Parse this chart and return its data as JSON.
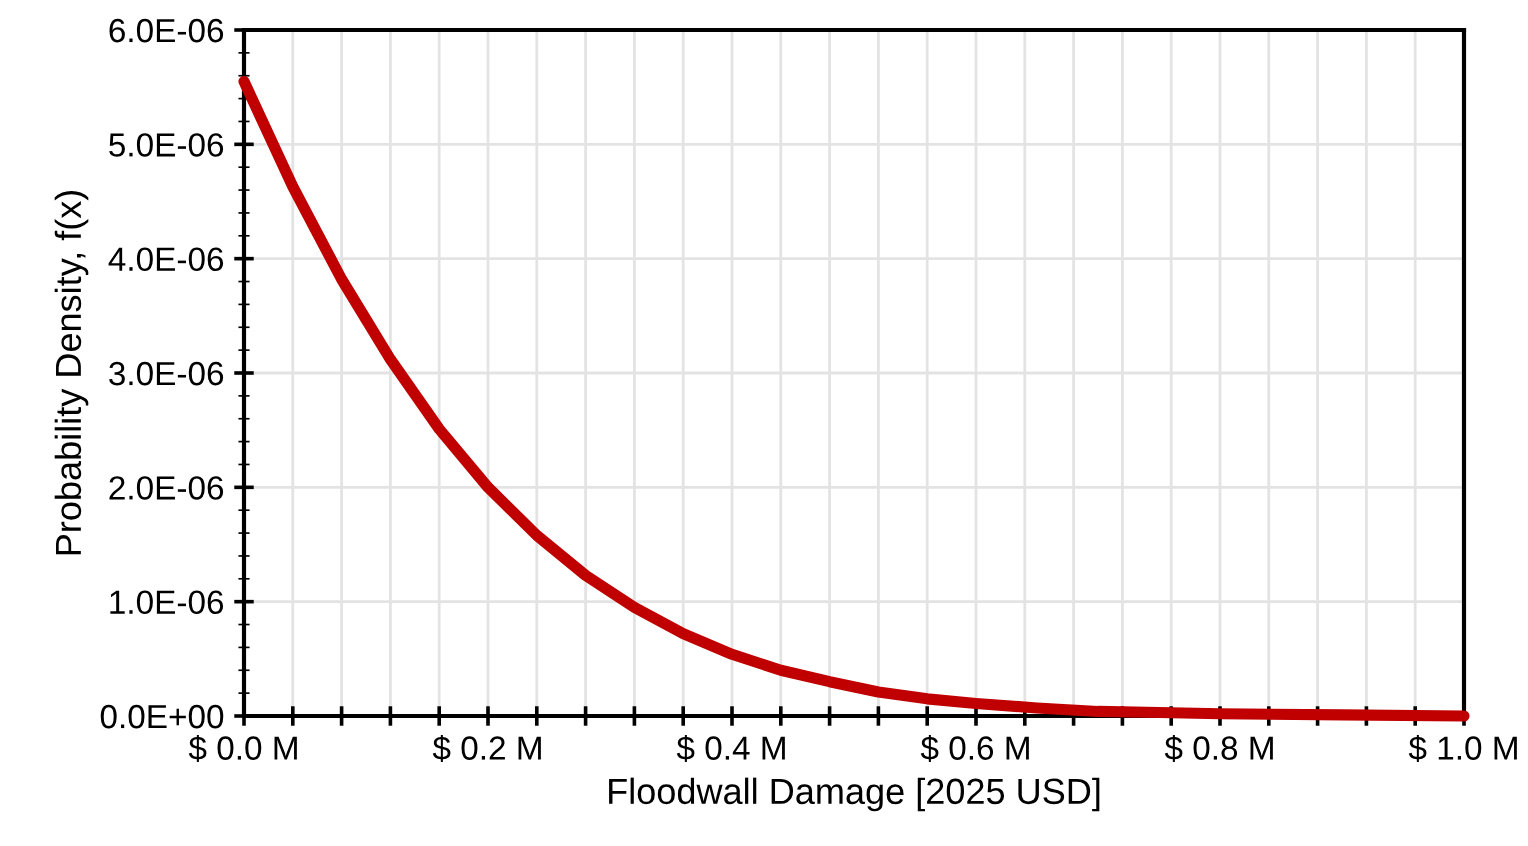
{
  "chart_data": {
    "type": "line",
    "xlabel": "Floodwall Damage [2025 USD]",
    "ylabel": "Probability Density, f(x)",
    "x": [
      0,
      0.04,
      0.08,
      0.12,
      0.16,
      0.2,
      0.24,
      0.28,
      0.32,
      0.36,
      0.4,
      0.44,
      0.48,
      0.52,
      0.56,
      0.6,
      0.65,
      0.7,
      0.75,
      0.8,
      0.9,
      1.0
    ],
    "series": [
      {
        "color": "#c00000",
        "values": [
          5.55e-06,
          4.63e-06,
          3.82e-06,
          3.12e-06,
          2.51e-06,
          2e-06,
          1.58e-06,
          1.23e-06,
          9.5e-07,
          7.2e-07,
          5.4e-07,
          4e-07,
          3e-07,
          2.1e-07,
          1.5e-07,
          1.1e-07,
          7e-08,
          4e-08,
          3e-08,
          2e-08,
          1e-08,
          0
        ]
      }
    ],
    "xlim": [
      0,
      1.0
    ],
    "ylim": [
      0,
      6e-06
    ],
    "xticks": [
      {
        "value": 0,
        "label": "$ 0.0 M"
      },
      {
        "value": 0.04,
        "label": null
      },
      {
        "value": 0.08,
        "label": null
      },
      {
        "value": 0.12,
        "label": null
      },
      {
        "value": 0.16,
        "label": null
      },
      {
        "value": 0.2,
        "label": "$ 0.2 M"
      },
      {
        "value": 0.24,
        "label": null
      },
      {
        "value": 0.28,
        "label": null
      },
      {
        "value": 0.32,
        "label": null
      },
      {
        "value": 0.36,
        "label": null
      },
      {
        "value": 0.4,
        "label": "$ 0.4 M"
      },
      {
        "value": 0.44,
        "label": null
      },
      {
        "value": 0.48,
        "label": null
      },
      {
        "value": 0.52,
        "label": null
      },
      {
        "value": 0.56,
        "label": null
      },
      {
        "value": 0.6,
        "label": "$ 0.6 M"
      },
      {
        "value": 0.64,
        "label": null
      },
      {
        "value": 0.68,
        "label": null
      },
      {
        "value": 0.72,
        "label": null
      },
      {
        "value": 0.76,
        "label": null
      },
      {
        "value": 0.8,
        "label": "$ 0.8 M"
      },
      {
        "value": 0.84,
        "label": null
      },
      {
        "value": 0.88,
        "label": null
      },
      {
        "value": 0.92,
        "label": null
      },
      {
        "value": 0.96,
        "label": null
      },
      {
        "value": 1.0,
        "label": "$ 1.0 M"
      }
    ],
    "yticks": [
      {
        "value": 0,
        "label": "0.0E+00"
      },
      {
        "value": 1e-06,
        "label": "1.0E-06"
      },
      {
        "value": 2e-06,
        "label": "2.0E-06"
      },
      {
        "value": 3e-06,
        "label": "3.0E-06"
      },
      {
        "value": 4e-06,
        "label": "4.0E-06"
      },
      {
        "value": 5e-06,
        "label": "5.0E-06"
      },
      {
        "value": 6e-06,
        "label": "6.0E-06"
      }
    ],
    "grid": true,
    "marker": "none",
    "line_style": "solid",
    "legend": false
  }
}
